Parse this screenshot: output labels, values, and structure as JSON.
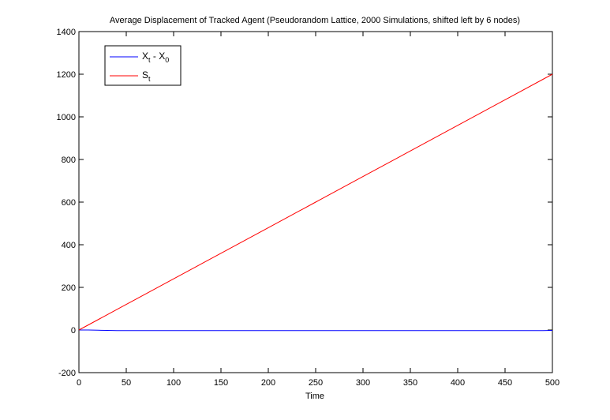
{
  "chart_data": {
    "type": "line",
    "title": "Average Displacement of Tracked Agent (Pseudorandom Lattice, 2000 Simulations, shifted left by 6 nodes)",
    "xlabel": "Time",
    "ylabel": "",
    "xlim": [
      0,
      500
    ],
    "ylim": [
      -200,
      1400
    ],
    "xticks": [
      0,
      50,
      100,
      150,
      200,
      250,
      300,
      350,
      400,
      450,
      500
    ],
    "yticks": [
      -200,
      0,
      200,
      400,
      600,
      800,
      1000,
      1200,
      1400
    ],
    "grid": false,
    "legend_position": "top-left",
    "series": [
      {
        "name": "X_t - X_0",
        "legend_main": "X",
        "legend_sub1": "t",
        "legend_mid": " - X",
        "legend_sub2": "0",
        "color": "#0000ff",
        "x": [
          0,
          10,
          20,
          30,
          40,
          50,
          100,
          150,
          200,
          250,
          300,
          350,
          400,
          450,
          490,
          500
        ],
        "values": [
          0,
          0,
          -1,
          -2,
          -3,
          -3,
          -3,
          -3,
          -3,
          -3,
          -3,
          -3,
          -3,
          -3,
          -3,
          -2
        ]
      },
      {
        "name": "S_t",
        "legend_main": "S",
        "legend_sub1": "t",
        "legend_mid": "",
        "legend_sub2": "",
        "color": "#ff0000",
        "x": [
          0,
          50,
          100,
          150,
          200,
          250,
          300,
          350,
          400,
          450,
          500
        ],
        "values": [
          0,
          120,
          240,
          360,
          480,
          600,
          720,
          840,
          960,
          1080,
          1200
        ]
      }
    ]
  }
}
